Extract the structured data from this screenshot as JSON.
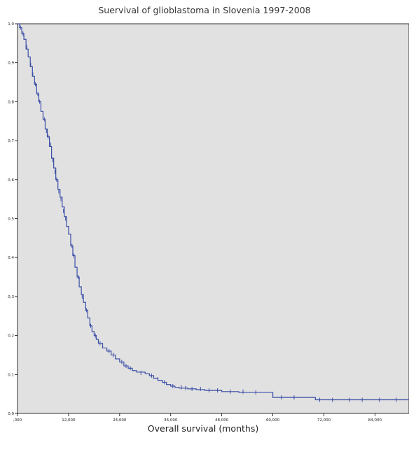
{
  "chart_data": {
    "type": "line",
    "title": "Suervival of glioblastoma in Slovenia 1997-2008",
    "xlabel": "Overall survival (months)",
    "ylabel": "",
    "xlim": [
      0,
      92
    ],
    "ylim": [
      0.0,
      1.0
    ],
    "xticks": [
      0,
      12,
      24,
      36,
      48,
      60,
      72,
      84
    ],
    "xtick_labels": [
      ",000",
      "12,000",
      "24,000",
      "36,000",
      "48,000",
      "60,000",
      "72,000",
      "84,000"
    ],
    "yticks": [
      0.0,
      0.1,
      0.2,
      0.3,
      0.4,
      0.5,
      0.6,
      0.7,
      0.8,
      0.9,
      1.0
    ],
    "ytick_labels": [
      "0,0",
      "0,1",
      "0,2",
      "0,3",
      "0,4",
      "0,5",
      "0,6",
      "0,7",
      "0,8",
      "0,9",
      "1,0"
    ],
    "grid": false,
    "background": "#e1e1e1",
    "line_color": "#3a4ea6",
    "series": [
      {
        "step": true,
        "points": [
          [
            0,
            1.0
          ],
          [
            0.5,
            0.99
          ],
          [
            1,
            0.975
          ],
          [
            1.5,
            0.96
          ],
          [
            2,
            0.935
          ],
          [
            2.5,
            0.915
          ],
          [
            3,
            0.89
          ],
          [
            3.5,
            0.865
          ],
          [
            4,
            0.845
          ],
          [
            4.5,
            0.82
          ],
          [
            5,
            0.8
          ],
          [
            5.5,
            0.775
          ],
          [
            6,
            0.755
          ],
          [
            6.5,
            0.73
          ],
          [
            7,
            0.71
          ],
          [
            7.5,
            0.685
          ],
          [
            8,
            0.655
          ],
          [
            8.5,
            0.63
          ],
          [
            9,
            0.6
          ],
          [
            9.5,
            0.575
          ],
          [
            10,
            0.555
          ],
          [
            10.5,
            0.53
          ],
          [
            11,
            0.505
          ],
          [
            11.5,
            0.48
          ],
          [
            12,
            0.46
          ],
          [
            12.5,
            0.43
          ],
          [
            13,
            0.405
          ],
          [
            13.5,
            0.375
          ],
          [
            14,
            0.35
          ],
          [
            14.5,
            0.325
          ],
          [
            15,
            0.305
          ],
          [
            15.5,
            0.285
          ],
          [
            16,
            0.265
          ],
          [
            16.5,
            0.245
          ],
          [
            17,
            0.225
          ],
          [
            17.5,
            0.21
          ],
          [
            18,
            0.2
          ],
          [
            18.5,
            0.19
          ],
          [
            19,
            0.18
          ],
          [
            20,
            0.168
          ],
          [
            21,
            0.16
          ],
          [
            22,
            0.15
          ],
          [
            23,
            0.14
          ],
          [
            24,
            0.132
          ],
          [
            25,
            0.122
          ],
          [
            26,
            0.116
          ],
          [
            27,
            0.11
          ],
          [
            28,
            0.106
          ],
          [
            30,
            0.102
          ],
          [
            31,
            0.097
          ],
          [
            32,
            0.09
          ],
          [
            33,
            0.085
          ],
          [
            34,
            0.08
          ],
          [
            35,
            0.074
          ],
          [
            36,
            0.07
          ],
          [
            37,
            0.067
          ],
          [
            38,
            0.065
          ],
          [
            40,
            0.063
          ],
          [
            42,
            0.061
          ],
          [
            44,
            0.059
          ],
          [
            48,
            0.056
          ],
          [
            52,
            0.054
          ],
          [
            56,
            0.054
          ],
          [
            60,
            0.041
          ],
          [
            68,
            0.041
          ],
          [
            70,
            0.035
          ],
          [
            84,
            0.035
          ],
          [
            92,
            0.035
          ]
        ],
        "censor_marks": [
          [
            0.7,
            0.99
          ],
          [
            1.3,
            0.975
          ],
          [
            2.2,
            0.94
          ],
          [
            3.1,
            0.895
          ],
          [
            3.6,
            0.87
          ],
          [
            4.2,
            0.845
          ],
          [
            4.8,
            0.82
          ],
          [
            5.2,
            0.8
          ],
          [
            6.3,
            0.755
          ],
          [
            6.8,
            0.725
          ],
          [
            7.2,
            0.71
          ],
          [
            7.8,
            0.69
          ],
          [
            8.3,
            0.65
          ],
          [
            8.8,
            0.62
          ],
          [
            9.2,
            0.6
          ],
          [
            9.7,
            0.57
          ],
          [
            10.2,
            0.55
          ],
          [
            10.8,
            0.52
          ],
          [
            11.3,
            0.5
          ],
          [
            12.8,
            0.43
          ],
          [
            13.2,
            0.405
          ],
          [
            14.3,
            0.35
          ],
          [
            15.2,
            0.3
          ],
          [
            16.2,
            0.265
          ],
          [
            17.2,
            0.225
          ],
          [
            18.3,
            0.2
          ],
          [
            19.4,
            0.18
          ],
          [
            21.5,
            0.16
          ],
          [
            22.5,
            0.15
          ],
          [
            24.5,
            0.132
          ],
          [
            25.5,
            0.122
          ],
          [
            26.5,
            0.116
          ],
          [
            29,
            0.104
          ],
          [
            31.5,
            0.097
          ],
          [
            33,
            0.088
          ],
          [
            34.5,
            0.08
          ],
          [
            36.5,
            0.07
          ],
          [
            38.5,
            0.067
          ],
          [
            39.5,
            0.065
          ],
          [
            41,
            0.063
          ],
          [
            43,
            0.063
          ],
          [
            45,
            0.059
          ],
          [
            47,
            0.059
          ],
          [
            50,
            0.056
          ],
          [
            53,
            0.056
          ],
          [
            56,
            0.054
          ],
          [
            62,
            0.041
          ],
          [
            65,
            0.041
          ],
          [
            71,
            0.035
          ],
          [
            74,
            0.035
          ],
          [
            78,
            0.035
          ],
          [
            81,
            0.035
          ],
          [
            85,
            0.035
          ],
          [
            89,
            0.035
          ]
        ]
      }
    ]
  }
}
